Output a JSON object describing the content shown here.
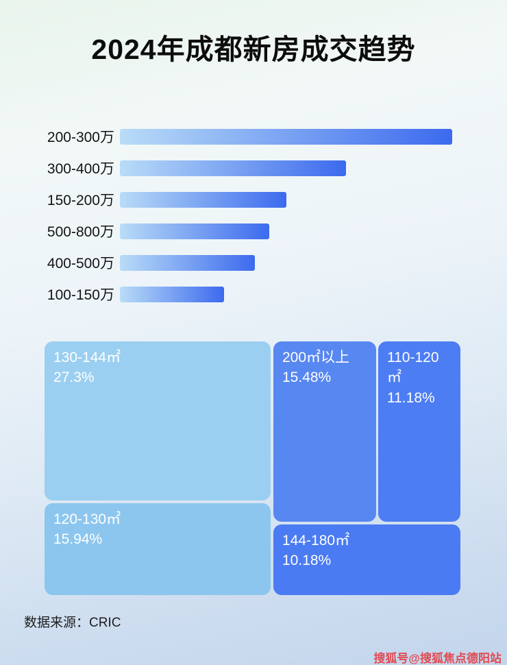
{
  "page": {
    "title": "2024年成都新房成交趋势",
    "source": "数据来源：CRIC",
    "watermark": "搜狐号@搜狐焦点德阳站"
  },
  "colors": {
    "bar-start": "#b9dcf7",
    "bar-end": "#3c6aee",
    "cell-light1": "#9bcff1",
    "cell-light2": "#8cc6ee",
    "cell-blue1": "#5787f0",
    "cell-blue2": "#4c7df2",
    "cell-blue3": "#4b7bf2",
    "watermark": "#e14b52"
  },
  "chart_data": [
    {
      "type": "bar",
      "orientation": "horizontal",
      "title": "2024年成都新房成交趋势",
      "categories": [
        "200-300万",
        "300-400万",
        "150-200万",
        "500-800万",
        "400-500万",
        "100-150万"
      ],
      "values": [
        485,
        330,
        243,
        218,
        197,
        152
      ],
      "values_relative_pct_of_max": [
        100,
        68,
        50,
        45,
        41,
        31
      ],
      "xlabel": "",
      "ylabel": "",
      "axis_labels_shown": false,
      "grid": false,
      "legend": "none"
    },
    {
      "type": "treemap",
      "items": [
        {
          "label": "130-144㎡",
          "percent": "27.3%",
          "value": 27.3
        },
        {
          "label": "200㎡以上",
          "percent": "15.48%",
          "value": 15.48
        },
        {
          "label": "110-120㎡",
          "percent": "11.18%",
          "value": 11.18
        },
        {
          "label": "120-130㎡",
          "percent": "15.94%",
          "value": 15.94
        },
        {
          "label": "144-180㎡",
          "percent": "10.18%",
          "value": 10.18
        }
      ]
    }
  ]
}
